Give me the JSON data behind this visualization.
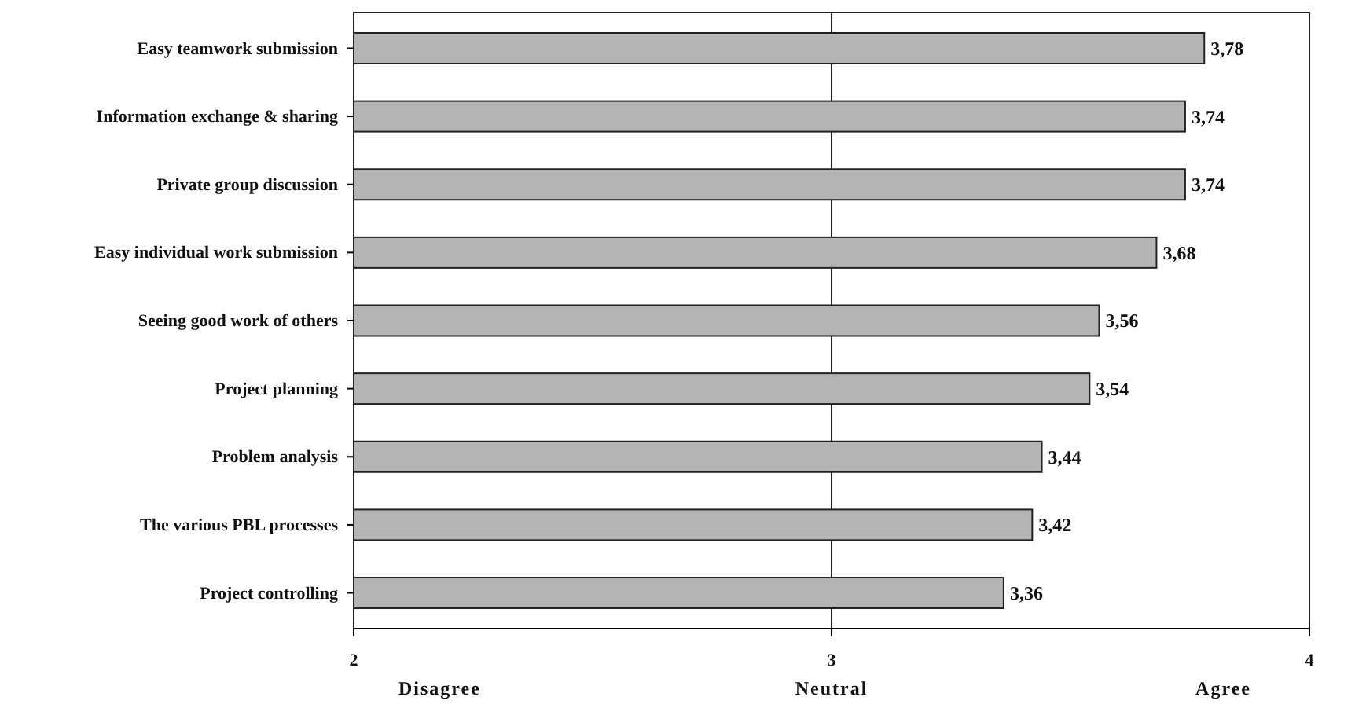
{
  "chart_data": {
    "type": "bar",
    "orientation": "horizontal",
    "categories": [
      "Easy teamwork submission",
      "Information exchange & sharing",
      "Private group discussion",
      "Easy individual work submission",
      "Seeing good work of others",
      "Project planning",
      "Problem analysis",
      "The various PBL processes",
      "Project controlling"
    ],
    "values": [
      3.78,
      3.74,
      3.74,
      3.68,
      3.56,
      3.54,
      3.44,
      3.42,
      3.36
    ],
    "value_labels": [
      "3,78",
      "3,74",
      "3,74",
      "3,68",
      "3,56",
      "3,54",
      "3,44",
      "3,42",
      "3,36"
    ],
    "color": "#b4b4b4",
    "xlim": [
      2,
      4
    ],
    "xticks": [
      2,
      3,
      4
    ],
    "grid": "x",
    "annotations": [
      "Disagree",
      "Neutral",
      "Agree"
    ]
  }
}
